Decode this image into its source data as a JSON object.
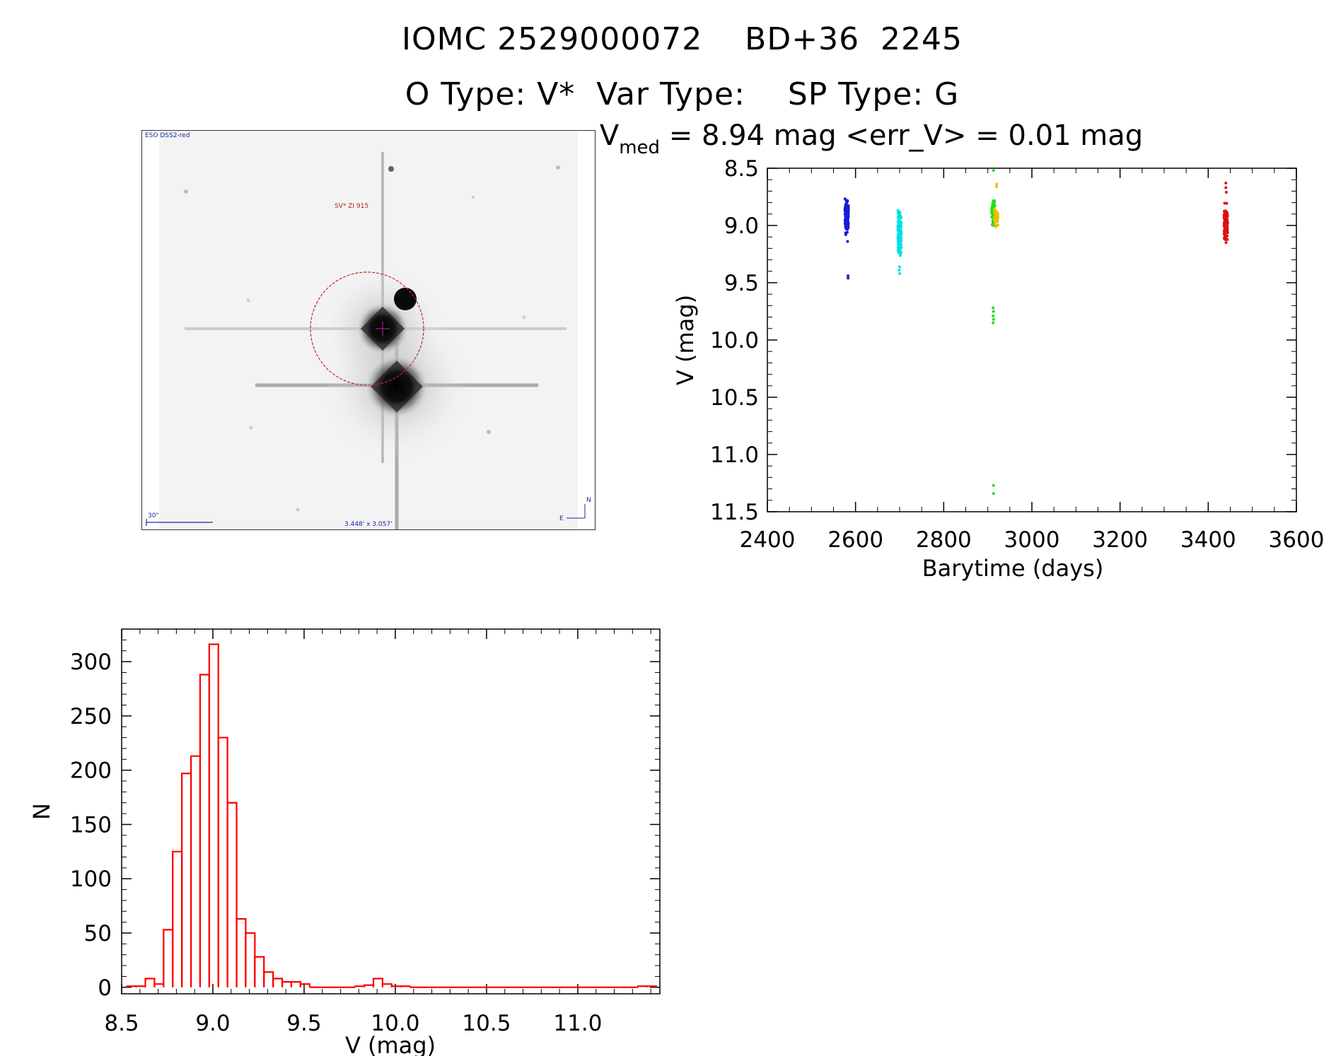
{
  "header": {
    "line1": "IOMC 2529000072    BD+36  2245",
    "line2": "O Type: V*  Var Type:    SP Type: G"
  },
  "stamp": {
    "survey_label": "ESO DSS2-red",
    "object_label": "SV* ZI 915",
    "scale_label": "30\"",
    "fov_label": "3.448' x 3.057'",
    "north_label": "N",
    "east_label": "E"
  },
  "chart_data": [
    {
      "type": "scatter",
      "title_parts": {
        "v": "V",
        "med": "med",
        "rest": " = 8.94 mag <err_V> = 0.01 mag"
      },
      "xlabel": "Barytime (days)",
      "ylabel": "V (mag)",
      "xlim": [
        2400,
        3600
      ],
      "ylim": [
        11.5,
        8.5
      ],
      "y_inverted": true,
      "x_ticks": [
        2400,
        2600,
        2800,
        3000,
        3200,
        3400,
        3600
      ],
      "y_ticks": [
        "8.5",
        "9.0",
        "9.5",
        "10.0",
        "10.5",
        "11.0",
        "11.5"
      ],
      "grid": false,
      "series": [
        {
          "color": "#1a1ad6",
          "x_center": 2580,
          "clusters": [
            {
              "y_min": 8.73,
              "y_max": 9.12,
              "n": 130
            }
          ],
          "outliers": [
            {
              "x": 2583,
              "y": 9.44
            },
            {
              "x": 2583,
              "y": 9.46
            },
            {
              "x": 2582,
              "y": 9.14
            }
          ]
        },
        {
          "color": "#00e0e8",
          "x_center": 2700,
          "clusters": [
            {
              "y_min": 8.83,
              "y_max": 9.32,
              "n": 160
            }
          ],
          "outliers": [
            {
              "x": 2700,
              "y": 9.36
            },
            {
              "x": 2700,
              "y": 9.42
            },
            {
              "x": 2699,
              "y": 9.39
            }
          ]
        },
        {
          "color": "#22dd22",
          "x_center": 2913,
          "clusters": [
            {
              "y_min": 8.74,
              "y_max": 9.06,
              "n": 60
            }
          ],
          "outliers": [
            {
              "x": 2913,
              "y": 8.52
            },
            {
              "x": 2912,
              "y": 9.72
            },
            {
              "x": 2913,
              "y": 9.75
            },
            {
              "x": 2912,
              "y": 9.79
            },
            {
              "x": 2913,
              "y": 9.82
            },
            {
              "x": 2912,
              "y": 9.85
            },
            {
              "x": 2913,
              "y": 11.27
            },
            {
              "x": 2913,
              "y": 11.34
            }
          ]
        },
        {
          "color": "#e8c000",
          "x_center": 2919,
          "clusters": [
            {
              "y_min": 8.78,
              "y_max": 9.06,
              "n": 40
            }
          ],
          "outliers": [
            {
              "x": 2920,
              "y": 8.64
            },
            {
              "x": 2920,
              "y": 8.66
            }
          ]
        },
        {
          "color": "#e01010",
          "x_center": 3440,
          "clusters": [
            {
              "y_min": 8.78,
              "y_max": 9.2,
              "n": 140
            }
          ],
          "outliers": [
            {
              "x": 3440,
              "y": 8.63
            },
            {
              "x": 3440,
              "y": 8.67
            },
            {
              "x": 3441,
              "y": 8.71
            }
          ]
        }
      ]
    },
    {
      "type": "bar",
      "xlabel": "V (mag)",
      "ylabel": "N",
      "xlim": [
        8.5,
        11.45
      ],
      "ylim": [
        -6,
        330
      ],
      "x_ticks": [
        "8.5",
        "9.0",
        "9.5",
        "10.0",
        "10.5",
        "11.0"
      ],
      "y_ticks": [
        0,
        50,
        100,
        150,
        200,
        250,
        300
      ],
      "color": "#ff0000",
      "bin_start": 8.53,
      "bin_width": 0.05,
      "counts": [
        1,
        1,
        8,
        3,
        53,
        125,
        197,
        213,
        288,
        316,
        230,
        170,
        63,
        50,
        28,
        14,
        8,
        5,
        5,
        3,
        0,
        0,
        0,
        0,
        0,
        1,
        2,
        8,
        3,
        1,
        1,
        0,
        0,
        0,
        0,
        0,
        0,
        0,
        0,
        0,
        0,
        0,
        0,
        0,
        0,
        0,
        0,
        0,
        0,
        0,
        0,
        0,
        0,
        0,
        0,
        0,
        1,
        1
      ]
    }
  ]
}
